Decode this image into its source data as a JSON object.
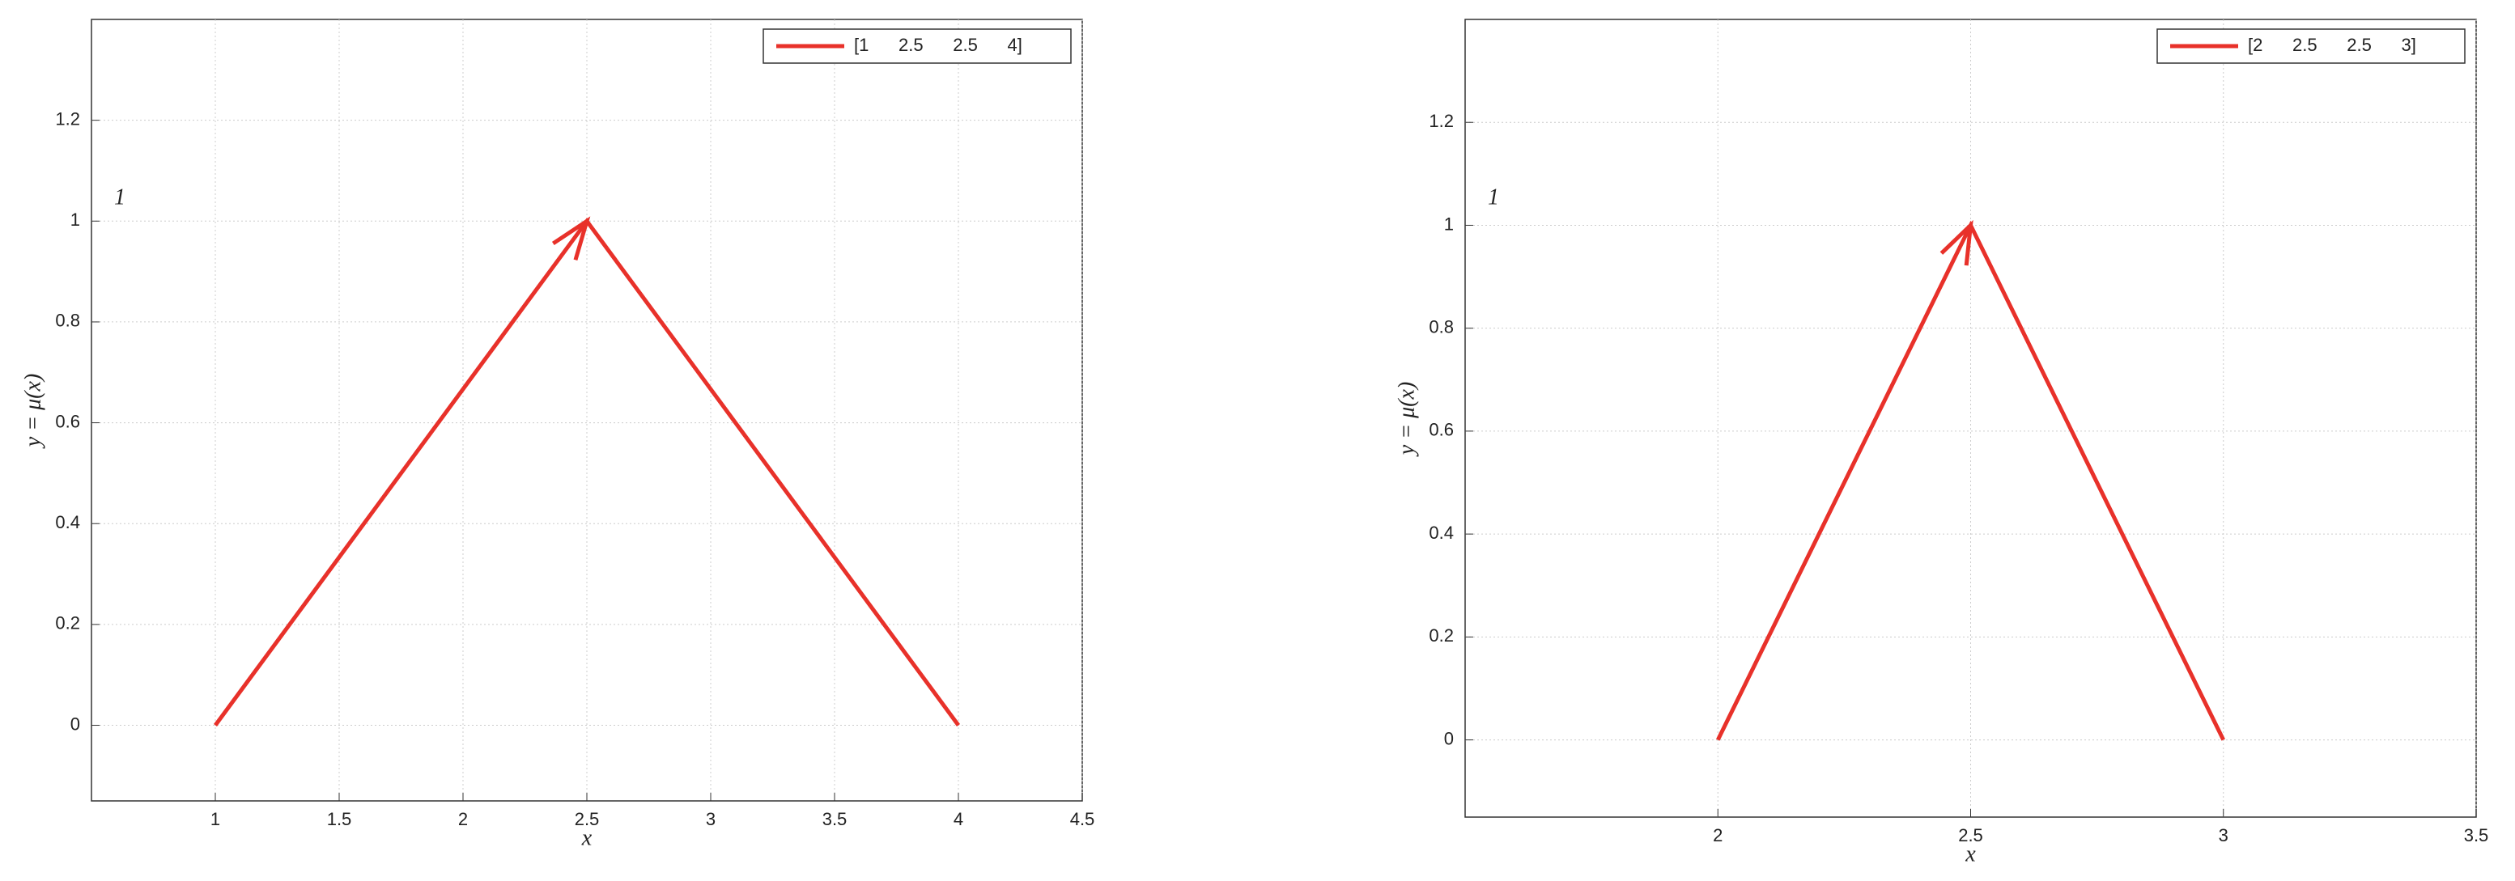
{
  "chart_data": [
    {
      "type": "line",
      "xlabel": "x",
      "ylabel": "y = μ(x)",
      "annotations": [
        "1"
      ],
      "x": [
        1,
        2.5,
        4
      ],
      "series": [
        {
          "name": "[1      2.5      2.5      4]",
          "color": "#e8312a",
          "values": [
            0,
            1,
            0
          ]
        }
      ],
      "xlim": [
        0.5,
        4.5
      ],
      "ylim": [
        -0.15,
        1.4
      ],
      "xticks": [
        1,
        1.5,
        2,
        2.5,
        3,
        3.5,
        4,
        4.5
      ],
      "yticks": [
        0,
        0.2,
        0.4,
        0.6,
        0.8,
        1,
        1.2
      ],
      "grid": true,
      "legend": "upper right"
    },
    {
      "type": "line",
      "xlabel": "x",
      "ylabel": "y = μ(x)",
      "annotations": [
        "1"
      ],
      "x": [
        2,
        2.5,
        3
      ],
      "series": [
        {
          "name": "[2      2.5      2.5      3]",
          "color": "#e8312a",
          "values": [
            0,
            1,
            0
          ]
        }
      ],
      "xlim": [
        1.5,
        3.5
      ],
      "ylim": [
        -0.15,
        1.4
      ],
      "xticks": [
        2,
        2.5,
        3,
        3.5
      ],
      "yticks": [
        0,
        0.2,
        0.4,
        0.6,
        0.8,
        1,
        1.2
      ],
      "grid": true,
      "legend": "upper right"
    }
  ]
}
